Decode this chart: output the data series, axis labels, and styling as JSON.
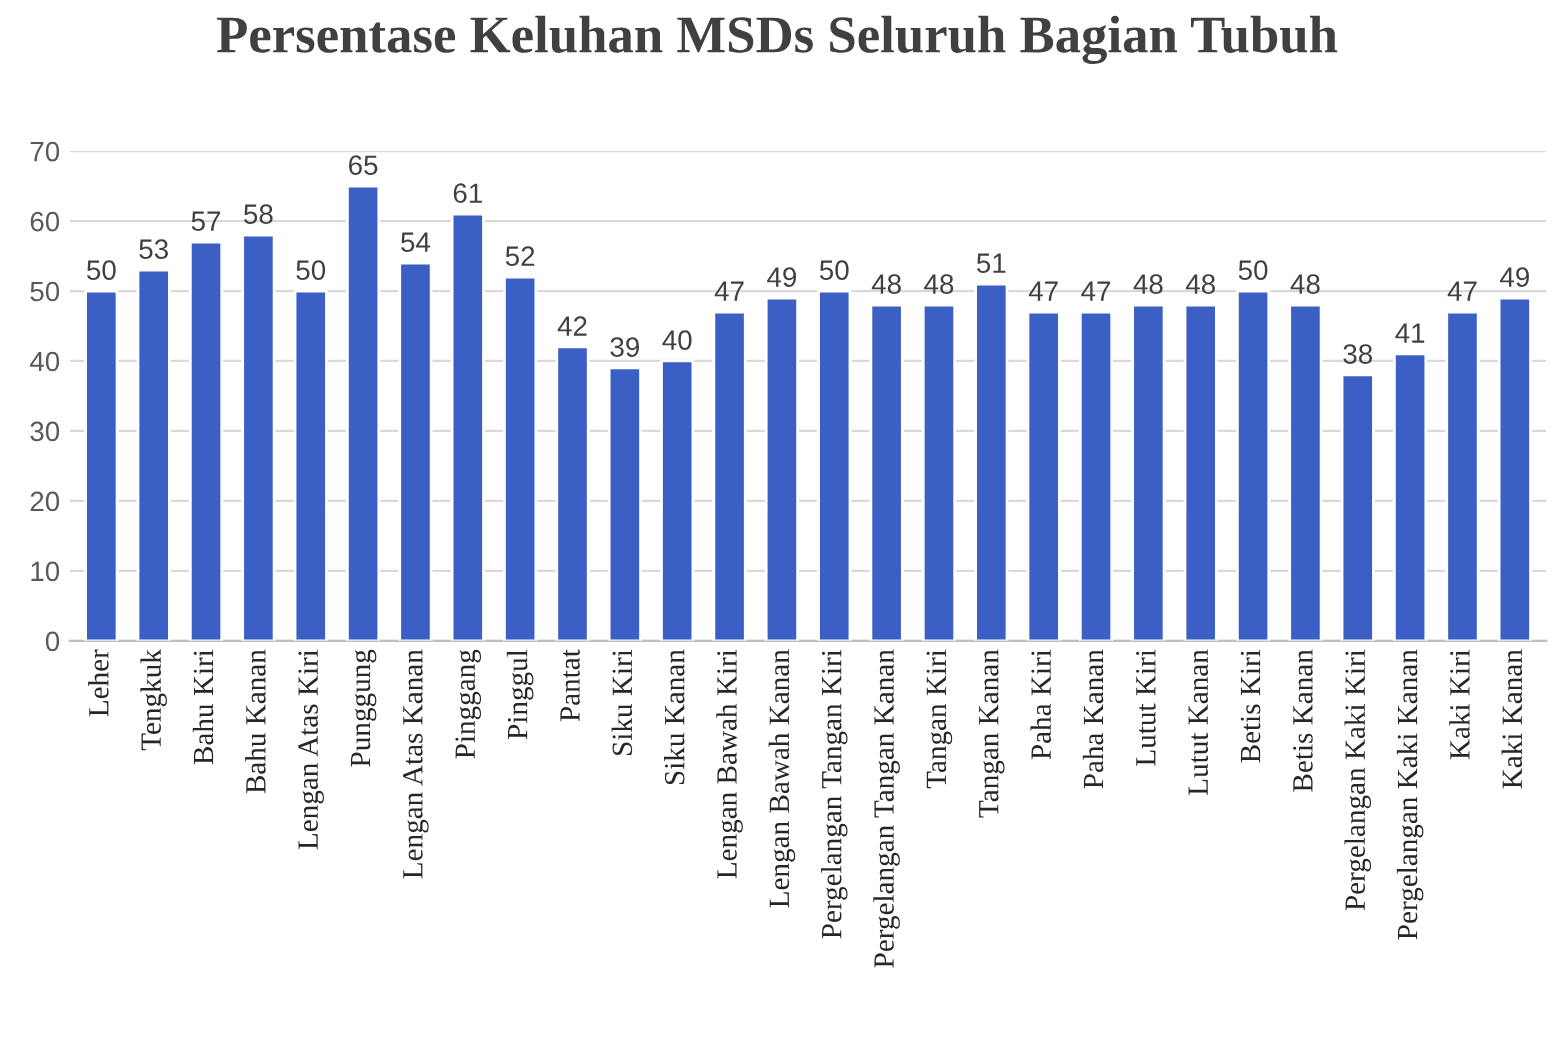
{
  "chart_data": {
    "type": "bar",
    "title": "Persentase Keluhan MSDs Seluruh Bagian Tubuh",
    "categories": [
      "Leher",
      "Tengkuk",
      "Bahu Kiri",
      "Bahu Kanan",
      "Lengan Atas Kiri",
      "Punggung",
      "Lengan Atas Kanan",
      "Pinggang",
      "Pinggul",
      "Pantat",
      "Siku Kiri",
      "Siku Kanan",
      "Lengan Bawah Kiri",
      "Lengan Bawah Kanan",
      "Pergelangan Tangan Kiri",
      "Pergelangan Tangan Kanan",
      "Tangan Kiri",
      "Tangan Kanan",
      "Paha Kiri",
      "Paha Kanan",
      "Lutut Kiri",
      "Lutut Kanan",
      "Betis Kiri",
      "Betis Kanan",
      "Pergelangan Kaki Kiri",
      "Pergelangan Kaki Kanan",
      "Kaki Kiri",
      "Kaki Kanan"
    ],
    "values": [
      50,
      53,
      57,
      58,
      50,
      65,
      54,
      61,
      52,
      42,
      39,
      40,
      47,
      49,
      50,
      48,
      48,
      51,
      47,
      47,
      48,
      48,
      50,
      48,
      38,
      41,
      47,
      49
    ],
    "color": "#3b5fc4",
    "ylim": [
      0,
      70
    ],
    "yticks": [
      0,
      10,
      20,
      30,
      40,
      50,
      60,
      70
    ],
    "grid": "y",
    "data_labels": true
  }
}
